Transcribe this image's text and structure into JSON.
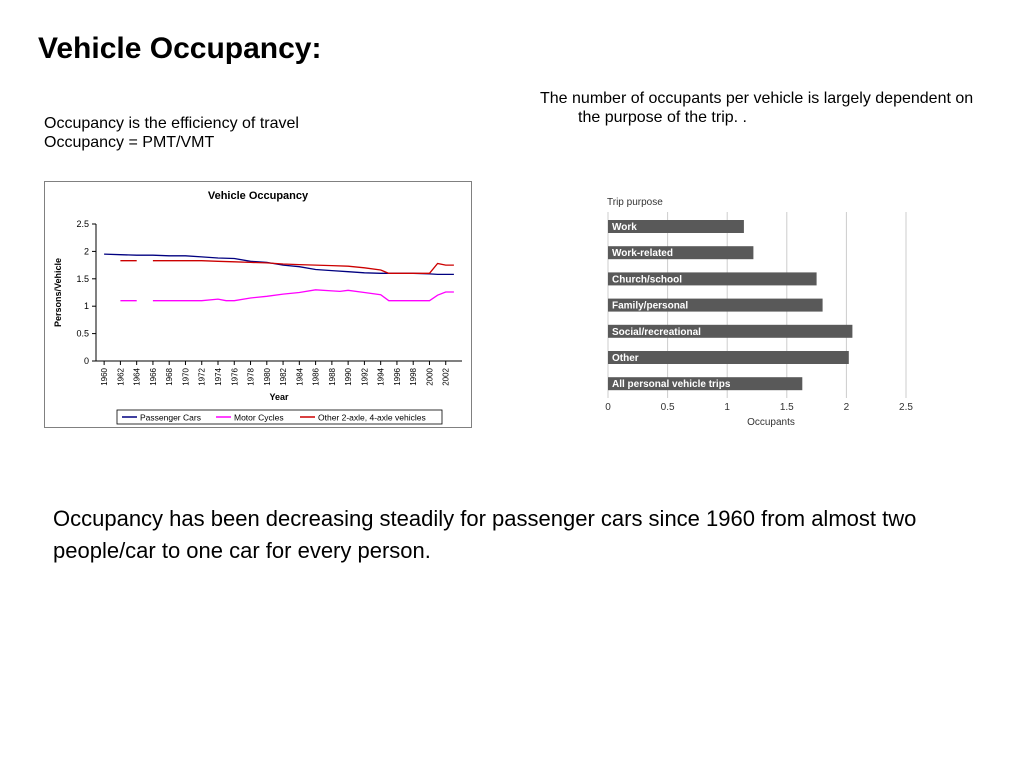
{
  "slide": {
    "title": "Vehicle Occupancy:",
    "left_line1": "Occupancy is the efficiency of travel",
    "left_line2": "Occupancy = PMT/VMT",
    "right_text": "The number of occupants per vehicle is largely dependent on the purpose of the trip. .",
    "bottom_text": "Occupancy has been decreasing steadily for passenger cars since 1960 from almost two people/car to one car for every person."
  },
  "chart_data": [
    {
      "type": "line",
      "title": "Vehicle Occupancy",
      "xlabel": "Year",
      "ylabel": "Persons/Vehicle",
      "ylim": [
        0,
        2.5
      ],
      "yticks": [
        "0",
        "0.5",
        "1",
        "1.5",
        "2",
        "2.5"
      ],
      "xticks": [
        "1960",
        "1962",
        "1964",
        "1966",
        "1968",
        "1970",
        "1972",
        "1974",
        "1976",
        "1978",
        "1980",
        "1982",
        "1984",
        "1986",
        "1988",
        "1990",
        "1992",
        "1994",
        "1996",
        "1998",
        "2000",
        "2002"
      ],
      "grid": false,
      "legend_position": "bottom",
      "series": [
        {
          "name": "Passenger Cars",
          "color": "#000080",
          "points": [
            [
              1960,
              1.95
            ],
            [
              1962,
              1.94
            ],
            [
              1964,
              1.93
            ],
            [
              1966,
              1.93
            ],
            [
              1968,
              1.92
            ],
            [
              1970,
              1.92
            ],
            [
              1972,
              1.9
            ],
            [
              1974,
              1.88
            ],
            [
              1976,
              1.87
            ],
            [
              1978,
              1.82
            ],
            [
              1980,
              1.8
            ],
            [
              1982,
              1.75
            ],
            [
              1984,
              1.72
            ],
            [
              1986,
              1.67
            ],
            [
              1988,
              1.65
            ],
            [
              1990,
              1.63
            ],
            [
              1992,
              1.61
            ],
            [
              1994,
              1.6
            ],
            [
              1996,
              1.6
            ],
            [
              1998,
              1.6
            ],
            [
              2000,
              1.59
            ],
            [
              2001,
              1.58
            ],
            [
              2002,
              1.58
            ],
            [
              2003,
              1.58
            ]
          ]
        },
        {
          "name": "Motor Cycles",
          "color": "#ff00ff",
          "segments": [
            [
              [
                1962,
                1.1
              ],
              [
                1964,
                1.1
              ]
            ],
            [
              [
                1966,
                1.1
              ],
              [
                1968,
                1.1
              ],
              [
                1970,
                1.1
              ],
              [
                1972,
                1.1
              ],
              [
                1974,
                1.13
              ],
              [
                1975,
                1.1
              ],
              [
                1976,
                1.1
              ],
              [
                1978,
                1.15
              ],
              [
                1980,
                1.18
              ],
              [
                1982,
                1.22
              ],
              [
                1984,
                1.25
              ],
              [
                1986,
                1.3
              ],
              [
                1988,
                1.28
              ],
              [
                1989,
                1.27
              ],
              [
                1990,
                1.29
              ],
              [
                1992,
                1.25
              ],
              [
                1994,
                1.21
              ],
              [
                1995,
                1.1
              ],
              [
                1996,
                1.1
              ],
              [
                1998,
                1.1
              ],
              [
                2000,
                1.1
              ],
              [
                2001,
                1.2
              ],
              [
                2002,
                1.26
              ],
              [
                2003,
                1.26
              ]
            ]
          ]
        },
        {
          "name": "Other 2-axle, 4-axle vehicles",
          "color": "#cc0000",
          "segments": [
            [
              [
                1962,
                1.83
              ],
              [
                1964,
                1.83
              ]
            ],
            [
              [
                1966,
                1.83
              ],
              [
                1968,
                1.83
              ],
              [
                1970,
                1.83
              ],
              [
                1972,
                1.83
              ],
              [
                1974,
                1.82
              ],
              [
                1976,
                1.81
              ],
              [
                1978,
                1.8
              ],
              [
                1980,
                1.79
              ],
              [
                1982,
                1.77
              ],
              [
                1984,
                1.76
              ],
              [
                1986,
                1.75
              ],
              [
                1988,
                1.74
              ],
              [
                1990,
                1.73
              ],
              [
                1992,
                1.7
              ],
              [
                1994,
                1.66
              ],
              [
                1995,
                1.6
              ],
              [
                1996,
                1.6
              ],
              [
                1998,
                1.6
              ],
              [
                2000,
                1.6
              ],
              [
                2001,
                1.78
              ],
              [
                2002,
                1.75
              ],
              [
                2003,
                1.75
              ]
            ]
          ]
        }
      ]
    },
    {
      "type": "bar",
      "orientation": "horizontal",
      "title": "Trip purpose",
      "xlabel": "Occupants",
      "ylabel": "",
      "xlim": [
        0,
        2.5
      ],
      "xticks": [
        "0",
        "0.5",
        "1",
        "1.5",
        "2",
        "2.5"
      ],
      "bar_color": "#595959",
      "categories": [
        "Work",
        "Work-related",
        "Church/school",
        "Family/personal",
        "Social/recreational",
        "Other",
        "All personal vehicle trips"
      ],
      "values": [
        1.14,
        1.22,
        1.75,
        1.8,
        2.05,
        2.02,
        1.63
      ]
    }
  ]
}
